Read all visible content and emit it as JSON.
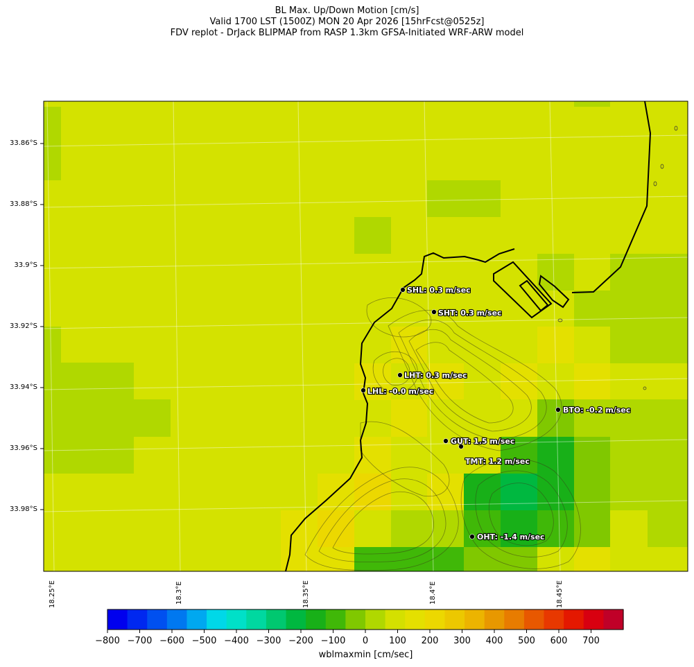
{
  "title_lines": [
    "BL Max. Up/Down Motion [cm/s]",
    "Valid 1700 LST (1500Z) MON 20 Apr 2026 [15hrFcst@0525z]",
    "FDV replot - DrJack BLIPMAP from RASP 1.3km GFSA-Initiated WRF-ARW model"
  ],
  "lat_labels": [
    "33.86°S",
    "33.88°S",
    "33.9°S",
    "33.92°S",
    "33.94°S",
    "33.96°S",
    "33.98°S"
  ],
  "lon_labels": [
    "18.25°E",
    "18.3°E",
    "18.35°E",
    "18.4°E",
    "18.45°E"
  ],
  "stations": [
    {
      "name": "SHL",
      "label": "SHL: 0.3 m/sec",
      "value": 0.3
    },
    {
      "name": "SHT",
      "label": "SHT: 0.3 m/sec",
      "value": 0.3
    },
    {
      "name": "LHT",
      "label": "LHT: 0.3 m/sec",
      "value": 0.3
    },
    {
      "name": "LHL",
      "label": "LHL: -0.0 m/sec",
      "value": -0.0
    },
    {
      "name": "BTO",
      "label": "BTO: -0.2 m/sec",
      "value": -0.2
    },
    {
      "name": "GUT",
      "label": "GUT: 1.5 m/sec",
      "value": 1.5
    },
    {
      "name": "TMT",
      "label": "TMT: 1.2 m/sec",
      "value": 1.2
    },
    {
      "name": "OHT",
      "label": "OHT: -1.4 m/sec",
      "value": -1.4
    }
  ],
  "colorbar": {
    "label": "wblmaxmin [cm/sec]",
    "ticks": [
      "−800",
      "−700",
      "−600",
      "−500",
      "−400",
      "−300",
      "−200",
      "−100",
      "0",
      "100",
      "200",
      "300",
      "400",
      "500",
      "600",
      "700"
    ],
    "range": [
      -800,
      800
    ],
    "colors": [
      "#0000ee",
      "#0028f0",
      "#0050f0",
      "#0078f0",
      "#00a8f0",
      "#00d8e8",
      "#00e0c8",
      "#00d8a0",
      "#00c870",
      "#00b840",
      "#18b018",
      "#40b808",
      "#80c800",
      "#b0d800",
      "#d4e000",
      "#e4e000",
      "#ecd800",
      "#ecc800",
      "#ecb400",
      "#e89800",
      "#e87c00",
      "#e85800",
      "#e83800",
      "#e41800",
      "#d80010",
      "#c00028"
    ]
  },
  "grid_colors": {
    "base": "#d4e200",
    "g1": "#b0d800",
    "g2": "#80c800",
    "g3": "#40b808",
    "g4": "#18b018",
    "g5": "#00b840",
    "y1": "#e4e000",
    "y2": "#ecd800"
  }
}
